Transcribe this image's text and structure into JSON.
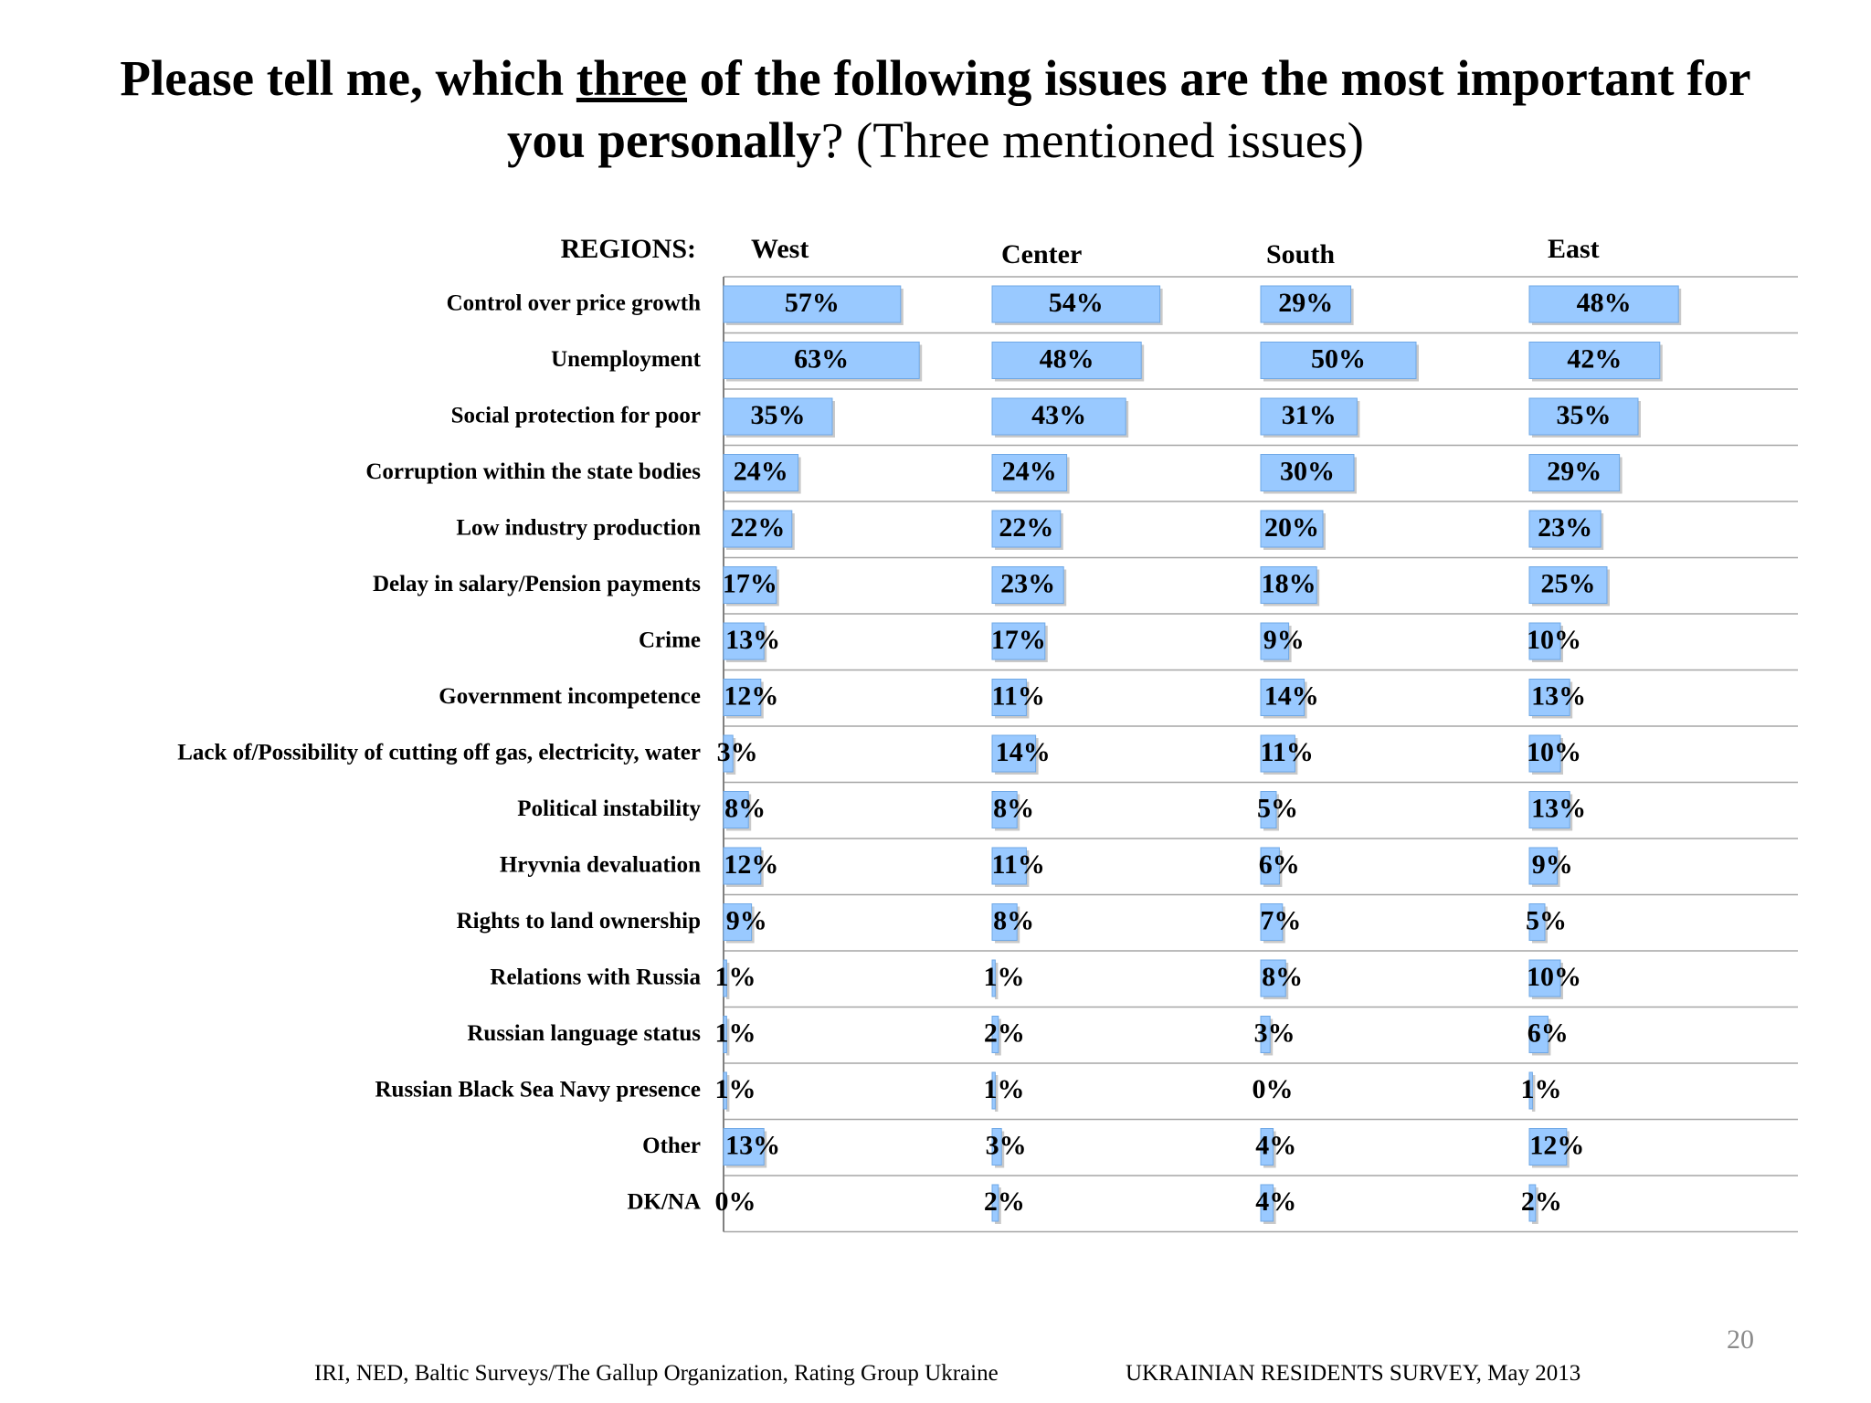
{
  "title": {
    "part1": "Please tell me, which ",
    "emphasis": "three",
    "part2": " of the following issues are the most important for",
    "part3": "you personally",
    "part4": "? (Three mentioned issues)"
  },
  "chart_data": {
    "type": "bar",
    "orientation": "horizontal",
    "group_label": "REGIONS:",
    "categories": [
      "Control over price growth",
      "Unemployment",
      "Social protection for poor",
      "Corruption within the state bodies",
      "Low industry production",
      "Delay in salary/Pension payments",
      "Crime",
      "Government incompetence",
      "Lack of/Possibility of cutting off gas, electricity, water",
      "Political instability",
      "Hryvnia devaluation",
      "Rights to land ownership",
      "Relations with Russia",
      "Russian language status",
      "Russian Black Sea Navy presence",
      "Other",
      "DK/NA"
    ],
    "series": [
      {
        "name": "West",
        "values": [
          57,
          63,
          35,
          24,
          22,
          17,
          13,
          12,
          3,
          8,
          12,
          9,
          1,
          1,
          1,
          13,
          0
        ]
      },
      {
        "name": "Center",
        "values": [
          54,
          48,
          43,
          24,
          22,
          23,
          17,
          11,
          14,
          8,
          11,
          8,
          1,
          2,
          1,
          3,
          2
        ]
      },
      {
        "name": "South",
        "values": [
          29,
          50,
          31,
          30,
          20,
          18,
          9,
          14,
          11,
          5,
          6,
          7,
          8,
          3,
          0,
          4,
          4
        ]
      },
      {
        "name": "East",
        "values": [
          48,
          42,
          35,
          29,
          23,
          25,
          10,
          13,
          10,
          13,
          9,
          5,
          10,
          6,
          1,
          12,
          2
        ]
      }
    ],
    "value_suffix": "%",
    "bar_color": "#99c9ff",
    "bar_edge_color": "#6fa8e6",
    "grid": true
  },
  "footer": {
    "source": "IRI, NED,  Baltic Surveys/The Gallup Organization, Rating Group Ukraine",
    "survey": "UKRAINIAN RESIDENTS SURVEY, May  2013",
    "page_number": "20"
  }
}
